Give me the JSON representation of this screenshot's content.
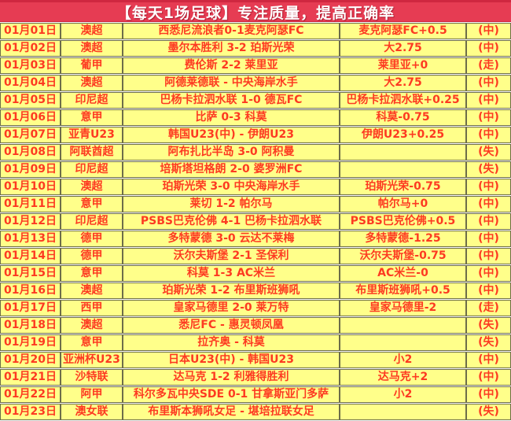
{
  "header": {
    "title": "【每天1场足球】专注质量，提高正确率"
  },
  "colors": {
    "banner_bg": "#e63c53",
    "banner_text": "#ffffff",
    "cell_yellow": "#ffff8a",
    "grid_line": "#6d6d49",
    "text_red": "#fd3a21",
    "result_hit_bg": "#ffc95a",
    "result_push_bg": "#00b050",
    "result_push_text": "#1a2fd8",
    "result_miss_bg": "#ffffff",
    "result_miss_text": "#141414"
  },
  "table": {
    "columns": [
      "date",
      "league",
      "match",
      "pick",
      "result"
    ],
    "rows": [
      {
        "date": "01月01日",
        "league": "澳超",
        "match": "西悉尼流浪者0-1麦克阿瑟FC",
        "pick": "麦克阿瑟FC+0.5",
        "result": "(中)",
        "status": "hit"
      },
      {
        "date": "01月02日",
        "league": "澳超",
        "match": "墨尔本胜利 3-2 珀斯光荣",
        "pick": "大2.75",
        "result": "(中)",
        "status": "hit"
      },
      {
        "date": "01月03日",
        "league": "葡甲",
        "match": "费伦斯 2-2 莱里亚",
        "pick": "莱里亚+0",
        "result": "(走)",
        "status": "push"
      },
      {
        "date": "01月04日",
        "league": "澳超",
        "match": "阿德莱德联 - 中央海岸水手",
        "pick": "大2.75",
        "result": "(中)",
        "status": "hit"
      },
      {
        "date": "01月05日",
        "league": "印尼超",
        "match": "巴杨卡拉泗水联 1-0 德瓦FC",
        "pick": "巴杨卡拉泗水联+0.25",
        "result": "(中)",
        "status": "hit"
      },
      {
        "date": "01月06日",
        "league": "意甲",
        "match": "比萨 0-3 科莫",
        "pick": "科莫-0.75",
        "result": "(中)",
        "status": "hit"
      },
      {
        "date": "01月07日",
        "league": "亚青U23",
        "match": "韩国U23(中) - 伊朗U23",
        "pick": "伊朗U23+0.25",
        "result": "(中)",
        "status": "hit"
      },
      {
        "date": "01月08日",
        "league": "阿联酋超",
        "match": "阿布扎比半岛 3-0 阿积曼",
        "pick": "",
        "result": "(失)",
        "status": "miss"
      },
      {
        "date": "01月09日",
        "league": "印尼超",
        "match": "培斯塔坦格朗 2-0 婆罗洲FC",
        "pick": "",
        "result": "(失)",
        "status": "miss"
      },
      {
        "date": "01月10日",
        "league": "澳超",
        "match": "珀斯光荣 3-0 中央海岸水手",
        "pick": "珀斯光荣-0.75",
        "result": "(中)",
        "status": "hit"
      },
      {
        "date": "01月11日",
        "league": "意甲",
        "match": "莱切 1-2 帕尔马",
        "pick": "帕尔马+0",
        "result": "(中)",
        "status": "hit"
      },
      {
        "date": "01月12日",
        "league": "印尼超",
        "match": "PSBS巴克伦佛 4-1 巴杨卡拉泗水联",
        "pick": "PSBS巴克伦佛+0.5",
        "result": "(中)",
        "status": "hit"
      },
      {
        "date": "01月13日",
        "league": "德甲",
        "match": "多特蒙德 3-0 云达不莱梅",
        "pick": "多特蒙德-1.25",
        "result": "(中)",
        "status": "hit"
      },
      {
        "date": "01月14日",
        "league": "德甲",
        "match": "沃尔夫斯堡 2-1 圣保利",
        "pick": "沃尔夫斯堡-0.75",
        "result": "(中)",
        "status": "hit"
      },
      {
        "date": "01月15日",
        "league": "意甲",
        "match": "科莫 1-3 AC米兰",
        "pick": "AC米兰-0",
        "result": "(中)",
        "status": "hit"
      },
      {
        "date": "01月16日",
        "league": "澳超",
        "match": "珀斯光荣 1-2 布里斯班狮吼",
        "pick": "布里斯班狮吼+0.5",
        "result": "(中)",
        "status": "hit"
      },
      {
        "date": "01月17日",
        "league": "西甲",
        "match": "皇家马德里 2-0 莱万特",
        "pick": "皇家马德里-2",
        "result": "(走)",
        "status": "push"
      },
      {
        "date": "01月18日",
        "league": "澳超",
        "match": "悉尼FC - 惠灵顿凤凰",
        "pick": "",
        "result": "(失)",
        "status": "miss"
      },
      {
        "date": "01月19日",
        "league": "意甲",
        "match": "拉齐奥 - 科莫",
        "pick": "",
        "result": "(失)",
        "status": "miss"
      },
      {
        "date": "01月20日",
        "league": "亚洲杯U23",
        "match": "日本U23(中) - 韩国U23",
        "pick": "小2",
        "result": "(中)",
        "status": "hit"
      },
      {
        "date": "01月21日",
        "league": "沙特联",
        "match": "达马克 1-2 利雅得胜利",
        "pick": "达马克+2",
        "result": "(中)",
        "status": "hit"
      },
      {
        "date": "01月22日",
        "league": "阿甲",
        "match": "科尔多瓦中央SDE 0-1 甘拿斯亚门多萨",
        "pick": "小2",
        "result": "(中)",
        "status": "hit"
      },
      {
        "date": "01月23日",
        "league": "澳女联",
        "match": "布里斯本狮吼女足 - 堪培拉联女足",
        "pick": "",
        "result": "(失)",
        "status": "miss"
      }
    ]
  }
}
